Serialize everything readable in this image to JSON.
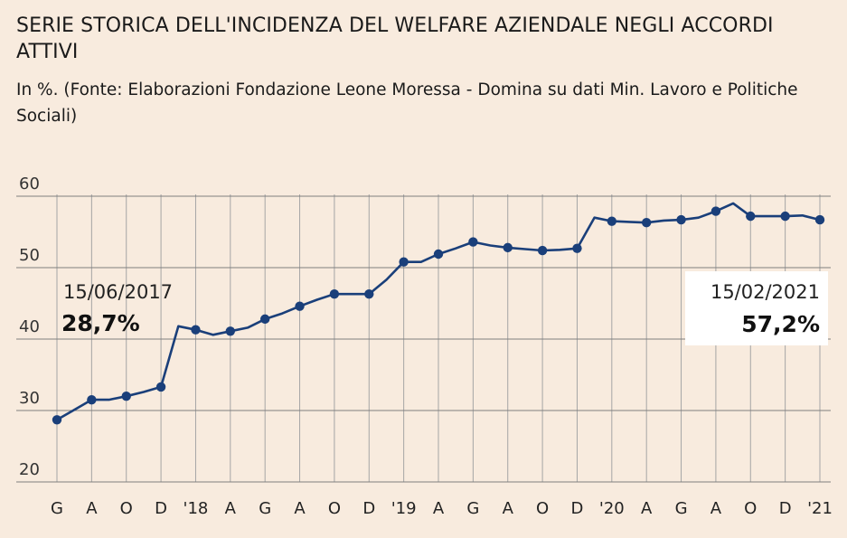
{
  "header": {
    "title": "SERIE STORICA DELL'INCIDENZA DEL WELFARE AZIENDALE NEGLI ACCORDI ATTIVI",
    "subtitle": "In %. (Fonte: Elaborazioni Fondazione Leone Moressa - Domina su dati Min. Lavoro e Politiche Sociali)"
  },
  "colors": {
    "background": "#f8ebde",
    "line": "#1a3f7a",
    "grid_horizontal": "#7f7f7f",
    "grid_vertical": "#a5a5a5",
    "annotation_box": "#ffffff"
  },
  "chart_data": {
    "type": "line",
    "title": "SERIE STORICA DELL'INCIDENZA DEL WELFARE AZIENDALE NEGLI ACCORDI ATTIVI",
    "xlabel": "",
    "ylabel": "",
    "ylim": [
      20,
      60
    ],
    "yticks": [
      20,
      30,
      40,
      50,
      60
    ],
    "grid": true,
    "categories": [
      "G",
      "A",
      "O",
      "D",
      "'18",
      "A",
      "G",
      "A",
      "O",
      "D",
      "'19",
      "A",
      "G",
      "A",
      "O",
      "D",
      "'20",
      "A",
      "G",
      "A",
      "O",
      "D",
      "'21"
    ],
    "series": [
      {
        "marker_values": [
          28.7,
          31.5,
          32.0,
          33.3,
          41.3,
          41.1,
          42.8,
          44.6,
          46.3,
          46.3,
          50.8,
          51.9,
          53.6,
          52.8,
          52.4,
          52.7,
          56.5,
          56.3,
          56.7,
          57.9,
          57.2,
          57.2,
          56.7
        ],
        "between_values": [
          30.1,
          31.5,
          32.6,
          41.8,
          40.6,
          41.6,
          43.6,
          45.5,
          46.3,
          48.3,
          50.8,
          52.7,
          53.1,
          52.6,
          52.5,
          57.0,
          56.4,
          56.6,
          57.0,
          59.0,
          57.2,
          57.3
        ]
      }
    ],
    "annotations": [
      {
        "date": "15/06/2017",
        "value": "28,7%",
        "position": "top-left"
      },
      {
        "date": "15/02/2021",
        "value": "57,2%",
        "position": "top-right"
      }
    ]
  }
}
